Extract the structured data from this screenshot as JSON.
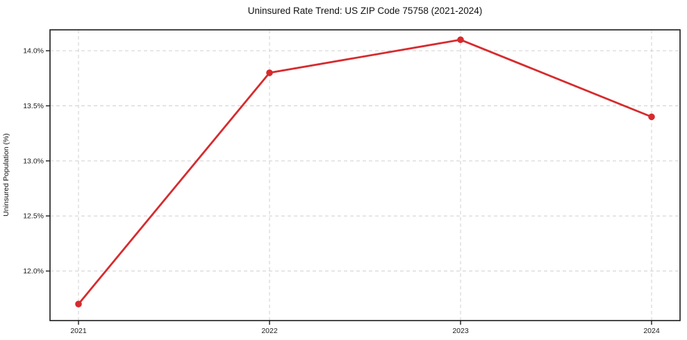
{
  "title": "Uninsured Rate Trend: US ZIP Code 75758 (2021-2024)",
  "chart_data": {
    "type": "line",
    "title": "Uninsured Rate Trend: US ZIP Code 75758 (2021-2024)",
    "xlabel": "",
    "ylabel": "Uninsured Population (%)",
    "categories": [
      "2021",
      "2022",
      "2023",
      "2024"
    ],
    "series": [
      {
        "name": "Uninsured Population (%)",
        "values": [
          11.7,
          13.8,
          14.1,
          13.4
        ]
      }
    ],
    "ylim": [
      11.55,
      14.19
    ],
    "yticks": [
      12.0,
      12.5,
      13.0,
      13.5,
      14.0
    ],
    "ytick_labels": [
      "12.0%",
      "12.5%",
      "13.0%",
      "13.5%",
      "14.0%"
    ],
    "grid": true,
    "grid_style": "dashed",
    "legend_position": "none",
    "colors": {
      "line": "#d62b2e",
      "marker": "#d62b2e",
      "grid": "#cfcfcf",
      "spine": "#1a1a1a",
      "background": "#ffffff",
      "text": "#1a1a1a"
    }
  }
}
